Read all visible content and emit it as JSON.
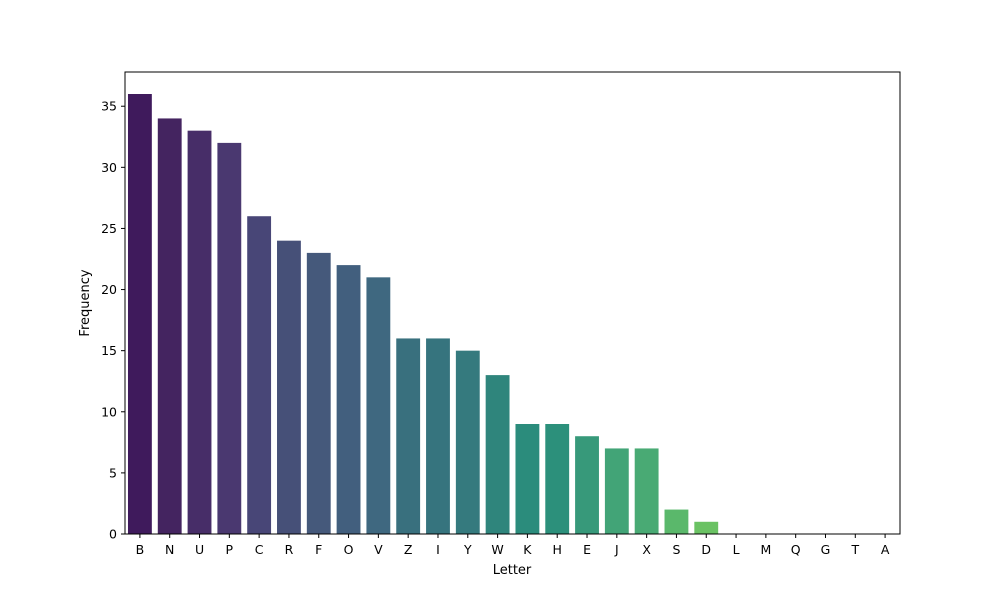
{
  "chart_data": {
    "type": "bar",
    "categories": [
      "B",
      "N",
      "U",
      "P",
      "C",
      "R",
      "F",
      "O",
      "V",
      "Z",
      "I",
      "Y",
      "W",
      "K",
      "H",
      "E",
      "J",
      "X",
      "S",
      "D",
      "L",
      "M",
      "Q",
      "G",
      "T",
      "A"
    ],
    "values": [
      36,
      34,
      33,
      32,
      26,
      24,
      23,
      22,
      21,
      16,
      16,
      15,
      13,
      9,
      9,
      8,
      7,
      7,
      2,
      1,
      0,
      0,
      0,
      0,
      0,
      0
    ],
    "colors": [
      "#3f1a5c",
      "#442460",
      "#472d68",
      "#4a3870",
      "#484677",
      "#465078",
      "#45597b",
      "#425f7e",
      "#3f6880",
      "#39707e",
      "#36747e",
      "#357a7e",
      "#2f857c",
      "#2b8c7c",
      "#2c907b",
      "#37997a",
      "#42a477",
      "#49aa74",
      "#5ab86b",
      "#6ac263",
      "#76c85e",
      "#80cd58",
      "#8ed24f",
      "#9ed646",
      "#aedb3b",
      "#bfe030"
    ],
    "xlabel": "Letter",
    "ylabel": "Frequency",
    "ylim": [
      0,
      37.8
    ],
    "yticks": [
      0,
      5,
      10,
      15,
      20,
      25,
      30,
      35
    ],
    "grid": false,
    "legend": "none"
  }
}
